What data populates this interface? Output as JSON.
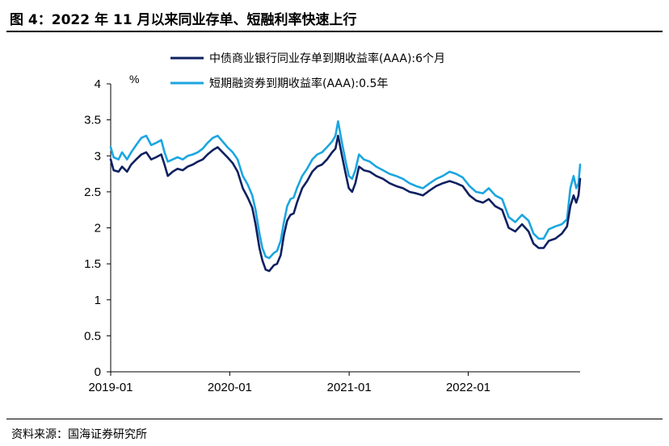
{
  "title": "图 4：2022 年 11 月以来同业存单、短融利率快速上行",
  "source": "资料来源：国海证券研究所",
  "colors": {
    "series1": "#0e2060",
    "series2": "#1ba6e0"
  },
  "chart_data": {
    "type": "line",
    "ylabel_unit": "%",
    "ylim": [
      0,
      4
    ],
    "yticks": [
      "0",
      "0.5",
      "1",
      "1.5",
      "2",
      "2.5",
      "3",
      "3.5",
      "4"
    ],
    "xticks": [
      "2019-01",
      "2020-01",
      "2021-01",
      "2022-01"
    ],
    "xrange": [
      "2019-01-01",
      "2022-12-10"
    ],
    "legend_position": "top-right",
    "grid": false,
    "series": [
      {
        "name": "中债商业银行同业存单到期收益率(AAA):6个月",
        "points": [
          [
            "2019-01-01",
            2.95
          ],
          [
            "2019-01-10",
            2.8
          ],
          [
            "2019-01-25",
            2.78
          ],
          [
            "2019-02-05",
            2.85
          ],
          [
            "2019-02-20",
            2.78
          ],
          [
            "2019-03-05",
            2.88
          ],
          [
            "2019-03-20",
            2.95
          ],
          [
            "2019-04-05",
            3.02
          ],
          [
            "2019-04-20",
            3.05
          ],
          [
            "2019-05-05",
            2.95
          ],
          [
            "2019-05-20",
            2.98
          ],
          [
            "2019-06-05",
            3.02
          ],
          [
            "2019-06-15",
            2.88
          ],
          [
            "2019-06-25",
            2.72
          ],
          [
            "2019-07-10",
            2.78
          ],
          [
            "2019-07-25",
            2.82
          ],
          [
            "2019-08-10",
            2.8
          ],
          [
            "2019-08-25",
            2.85
          ],
          [
            "2019-09-10",
            2.88
          ],
          [
            "2019-09-25",
            2.92
          ],
          [
            "2019-10-10",
            2.95
          ],
          [
            "2019-10-25",
            3.02
          ],
          [
            "2019-11-10",
            3.08
          ],
          [
            "2019-11-25",
            3.12
          ],
          [
            "2019-12-10",
            3.05
          ],
          [
            "2019-12-25",
            2.98
          ],
          [
            "2020-01-10",
            2.9
          ],
          [
            "2020-01-25",
            2.78
          ],
          [
            "2020-02-10",
            2.55
          ],
          [
            "2020-02-25",
            2.42
          ],
          [
            "2020-03-10",
            2.28
          ],
          [
            "2020-03-20",
            2.05
          ],
          [
            "2020-04-01",
            1.72
          ],
          [
            "2020-04-10",
            1.55
          ],
          [
            "2020-04-20",
            1.42
          ],
          [
            "2020-05-01",
            1.4
          ],
          [
            "2020-05-15",
            1.48
          ],
          [
            "2020-05-25",
            1.5
          ],
          [
            "2020-06-05",
            1.62
          ],
          [
            "2020-06-15",
            1.9
          ],
          [
            "2020-06-25",
            2.1
          ],
          [
            "2020-07-05",
            2.18
          ],
          [
            "2020-07-15",
            2.2
          ],
          [
            "2020-07-25",
            2.35
          ],
          [
            "2020-08-10",
            2.55
          ],
          [
            "2020-08-25",
            2.65
          ],
          [
            "2020-09-10",
            2.78
          ],
          [
            "2020-09-25",
            2.85
          ],
          [
            "2020-10-10",
            2.88
          ],
          [
            "2020-10-25",
            2.95
          ],
          [
            "2020-11-10",
            3.05
          ],
          [
            "2020-11-20",
            3.1
          ],
          [
            "2020-11-28",
            3.28
          ],
          [
            "2020-12-10",
            3.0
          ],
          [
            "2020-12-20",
            2.78
          ],
          [
            "2020-12-31",
            2.55
          ],
          [
            "2021-01-10",
            2.5
          ],
          [
            "2021-01-20",
            2.62
          ],
          [
            "2021-01-31",
            2.85
          ],
          [
            "2021-02-15",
            2.8
          ],
          [
            "2021-03-05",
            2.78
          ],
          [
            "2021-03-25",
            2.72
          ],
          [
            "2021-04-15",
            2.68
          ],
          [
            "2021-05-05",
            2.62
          ],
          [
            "2021-05-25",
            2.58
          ],
          [
            "2021-06-15",
            2.55
          ],
          [
            "2021-07-05",
            2.5
          ],
          [
            "2021-07-25",
            2.48
          ],
          [
            "2021-08-15",
            2.45
          ],
          [
            "2021-09-05",
            2.52
          ],
          [
            "2021-09-25",
            2.58
          ],
          [
            "2021-10-15",
            2.62
          ],
          [
            "2021-11-05",
            2.65
          ],
          [
            "2021-11-25",
            2.62
          ],
          [
            "2021-12-15",
            2.58
          ],
          [
            "2022-01-05",
            2.45
          ],
          [
            "2022-01-25",
            2.38
          ],
          [
            "2022-02-15",
            2.35
          ],
          [
            "2022-03-05",
            2.4
          ],
          [
            "2022-03-25",
            2.3
          ],
          [
            "2022-04-15",
            2.25
          ],
          [
            "2022-05-05",
            2.0
          ],
          [
            "2022-05-25",
            1.95
          ],
          [
            "2022-06-15",
            2.05
          ],
          [
            "2022-07-05",
            1.95
          ],
          [
            "2022-07-20",
            1.78
          ],
          [
            "2022-08-05",
            1.72
          ],
          [
            "2022-08-20",
            1.72
          ],
          [
            "2022-09-05",
            1.82
          ],
          [
            "2022-09-25",
            1.85
          ],
          [
            "2022-10-15",
            1.92
          ],
          [
            "2022-10-31",
            2.02
          ],
          [
            "2022-11-10",
            2.3
          ],
          [
            "2022-11-20",
            2.45
          ],
          [
            "2022-11-28",
            2.35
          ],
          [
            "2022-12-05",
            2.45
          ],
          [
            "2022-12-10",
            2.68
          ]
        ]
      },
      {
        "name": "短期融资券到期收益率(AAA):0.5年",
        "points": [
          [
            "2019-01-01",
            3.12
          ],
          [
            "2019-01-10",
            2.98
          ],
          [
            "2019-01-25",
            2.95
          ],
          [
            "2019-02-05",
            3.05
          ],
          [
            "2019-02-20",
            2.95
          ],
          [
            "2019-03-05",
            3.05
          ],
          [
            "2019-03-20",
            3.15
          ],
          [
            "2019-04-05",
            3.25
          ],
          [
            "2019-04-20",
            3.28
          ],
          [
            "2019-05-05",
            3.15
          ],
          [
            "2019-05-20",
            3.18
          ],
          [
            "2019-06-05",
            3.22
          ],
          [
            "2019-06-15",
            3.05
          ],
          [
            "2019-06-25",
            2.92
          ],
          [
            "2019-07-10",
            2.95
          ],
          [
            "2019-07-25",
            2.98
          ],
          [
            "2019-08-10",
            2.95
          ],
          [
            "2019-08-25",
            3.0
          ],
          [
            "2019-09-10",
            3.02
          ],
          [
            "2019-09-25",
            3.05
          ],
          [
            "2019-10-10",
            3.1
          ],
          [
            "2019-10-25",
            3.18
          ],
          [
            "2019-11-10",
            3.25
          ],
          [
            "2019-11-25",
            3.28
          ],
          [
            "2019-12-10",
            3.2
          ],
          [
            "2019-12-25",
            3.12
          ],
          [
            "2020-01-10",
            3.05
          ],
          [
            "2020-01-25",
            2.95
          ],
          [
            "2020-02-10",
            2.72
          ],
          [
            "2020-02-25",
            2.6
          ],
          [
            "2020-03-10",
            2.45
          ],
          [
            "2020-03-20",
            2.25
          ],
          [
            "2020-04-01",
            1.92
          ],
          [
            "2020-04-10",
            1.72
          ],
          [
            "2020-04-20",
            1.6
          ],
          [
            "2020-05-01",
            1.58
          ],
          [
            "2020-05-15",
            1.65
          ],
          [
            "2020-05-25",
            1.68
          ],
          [
            "2020-06-05",
            1.82
          ],
          [
            "2020-06-15",
            2.08
          ],
          [
            "2020-06-25",
            2.3
          ],
          [
            "2020-07-05",
            2.4
          ],
          [
            "2020-07-15",
            2.42
          ],
          [
            "2020-07-25",
            2.55
          ],
          [
            "2020-08-10",
            2.72
          ],
          [
            "2020-08-25",
            2.82
          ],
          [
            "2020-09-10",
            2.95
          ],
          [
            "2020-09-25",
            3.02
          ],
          [
            "2020-10-10",
            3.05
          ],
          [
            "2020-10-25",
            3.12
          ],
          [
            "2020-11-10",
            3.2
          ],
          [
            "2020-11-20",
            3.28
          ],
          [
            "2020-11-28",
            3.48
          ],
          [
            "2020-12-10",
            3.18
          ],
          [
            "2020-12-20",
            2.95
          ],
          [
            "2020-12-31",
            2.72
          ],
          [
            "2021-01-10",
            2.68
          ],
          [
            "2021-01-20",
            2.8
          ],
          [
            "2021-01-31",
            3.02
          ],
          [
            "2021-02-15",
            2.95
          ],
          [
            "2021-03-05",
            2.92
          ],
          [
            "2021-03-25",
            2.85
          ],
          [
            "2021-04-15",
            2.8
          ],
          [
            "2021-05-05",
            2.75
          ],
          [
            "2021-05-25",
            2.72
          ],
          [
            "2021-06-15",
            2.68
          ],
          [
            "2021-07-05",
            2.62
          ],
          [
            "2021-07-25",
            2.58
          ],
          [
            "2021-08-15",
            2.55
          ],
          [
            "2021-09-05",
            2.62
          ],
          [
            "2021-09-25",
            2.68
          ],
          [
            "2021-10-15",
            2.72
          ],
          [
            "2021-11-05",
            2.78
          ],
          [
            "2021-11-25",
            2.75
          ],
          [
            "2021-12-15",
            2.7
          ],
          [
            "2022-01-05",
            2.58
          ],
          [
            "2022-01-25",
            2.5
          ],
          [
            "2022-02-15",
            2.48
          ],
          [
            "2022-03-05",
            2.55
          ],
          [
            "2022-03-25",
            2.45
          ],
          [
            "2022-04-15",
            2.4
          ],
          [
            "2022-05-05",
            2.15
          ],
          [
            "2022-05-25",
            2.08
          ],
          [
            "2022-06-15",
            2.18
          ],
          [
            "2022-07-05",
            2.1
          ],
          [
            "2022-07-20",
            1.92
          ],
          [
            "2022-08-05",
            1.85
          ],
          [
            "2022-08-20",
            1.85
          ],
          [
            "2022-09-05",
            1.98
          ],
          [
            "2022-09-25",
            2.02
          ],
          [
            "2022-10-15",
            2.05
          ],
          [
            "2022-10-31",
            2.12
          ],
          [
            "2022-11-10",
            2.55
          ],
          [
            "2022-11-20",
            2.72
          ],
          [
            "2022-11-28",
            2.55
          ],
          [
            "2022-12-05",
            2.62
          ],
          [
            "2022-12-10",
            2.88
          ]
        ]
      }
    ]
  }
}
